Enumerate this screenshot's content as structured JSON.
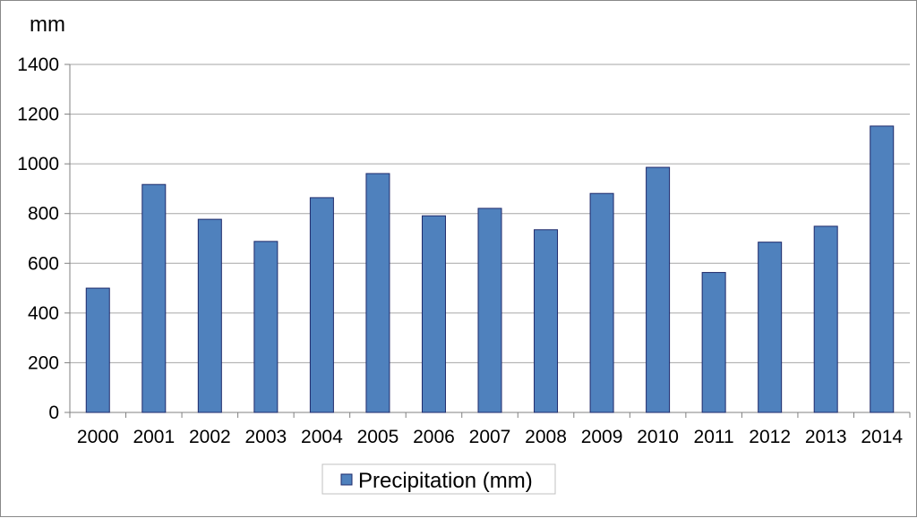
{
  "chart_data": {
    "type": "bar",
    "ylabel": "mm",
    "categories": [
      "2000",
      "2001",
      "2002",
      "2003",
      "2004",
      "2005",
      "2006",
      "2007",
      "2008",
      "2009",
      "2010",
      "2011",
      "2012",
      "2013",
      "2014"
    ],
    "series": [
      {
        "name": "Precipitation (mm)",
        "values": [
          500,
          917,
          777,
          688,
          864,
          961,
          791,
          821,
          735,
          881,
          986,
          563,
          685,
          749,
          1152
        ],
        "color": "#4f81bd",
        "border_color": "#1f2a6b"
      }
    ],
    "ylim": [
      0,
      1400
    ],
    "yticks": [
      0,
      200,
      400,
      600,
      800,
      1000,
      1200,
      1400
    ],
    "grid": true,
    "legend_position": "bottom-center"
  }
}
